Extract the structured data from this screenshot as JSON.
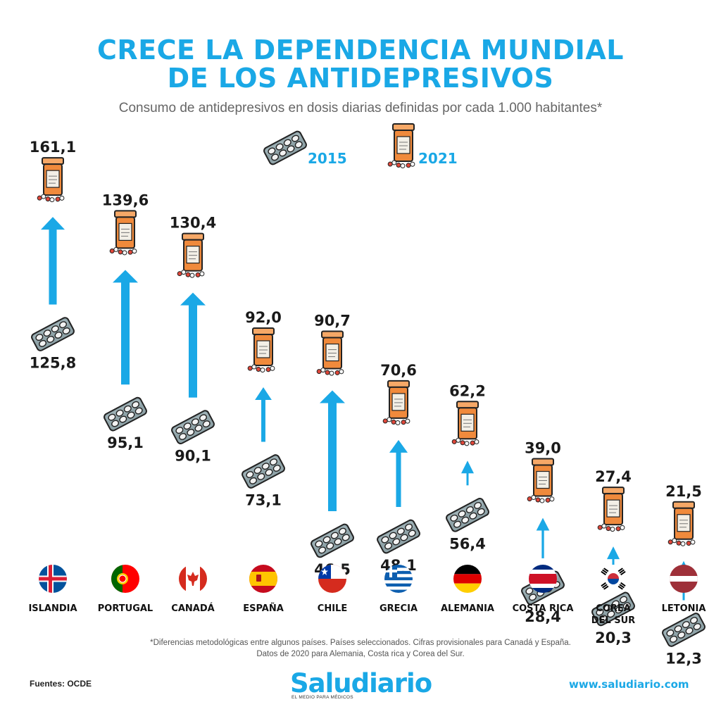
{
  "title_line1": "CRECE LA DEPENDENCIA MUNDIAL",
  "title_line2": "DE LOS ANTIDEPRESIVOS",
  "subtitle": "Consumo de antidepresivos en dosis diarias definidas por cada 1.000 habitantes*",
  "legend": {
    "year_2015": "2015",
    "year_2021": "2021"
  },
  "chart_data": {
    "type": "arrow",
    "title": "CRECE LA DEPENDENCIA MUNDIAL DE LOS ANTIDEPRESIVOS",
    "subtitle": "Consumo de antidepresivos en dosis diarias definidas por cada 1.000 habitantes*",
    "categories": [
      "ISLANDIA",
      "PORTUGAL",
      "CANADÁ",
      "ESPAÑA",
      "CHILE",
      "GRECIA",
      "ALEMANIA",
      "COSTA RICA",
      "COREA\nDEL SUR",
      "LETONIA"
    ],
    "series": [
      {
        "name": "2015",
        "values": [
          125.8,
          95.1,
          90.1,
          73.1,
          46.5,
          48.1,
          56.4,
          28.4,
          20.3,
          12.3
        ],
        "labels": [
          "125,8",
          "95,1",
          "90,1",
          "73,1",
          "46,5",
          "48,1",
          "56,4",
          "28,4",
          "20,3",
          "12,3"
        ]
      },
      {
        "name": "2021",
        "values": [
          161.1,
          139.6,
          130.4,
          92.0,
          90.7,
          70.6,
          62.2,
          39.0,
          27.4,
          21.5
        ],
        "labels": [
          "161,1",
          "139,6",
          "130,4",
          "92,0",
          "90,7",
          "70,6",
          "62,2",
          "39,0",
          "27,4",
          "21,5"
        ]
      }
    ],
    "legend": "top-center",
    "grid": false
  },
  "footnote_line1": "*Diferencias metodológicas entre algunos países. Países seleccionados. Cifras provisionales para Canadá y España.",
  "footnote_line2": "Datos de 2020 para Alemania, Costa rica y Corea del Sur.",
  "sources": "Fuentes: OCDE",
  "brand": "Saludiario",
  "brand_tagline": "EL MEDIO PARA MÉDICOS",
  "website": "www.saludiario.com",
  "colors": {
    "accent": "#1aa8e6",
    "pill_bottle": "#f08a3c",
    "blister": "#8fa3a8",
    "text": "#1a1a1a"
  },
  "icons": {
    "year_2015": "pill-blister-icon",
    "year_2021": "pill-bottle-icon"
  },
  "flags": [
    "iceland-flag",
    "portugal-flag",
    "canada-flag",
    "spain-flag",
    "chile-flag",
    "greece-flag",
    "germany-flag",
    "costa-rica-flag",
    "south-korea-flag",
    "latvia-flag"
  ]
}
